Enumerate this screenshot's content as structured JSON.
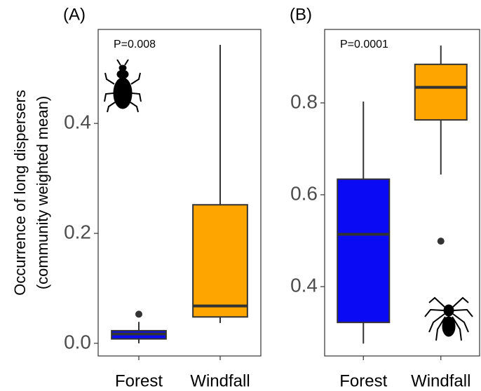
{
  "chart_data": [
    {
      "type": "box",
      "panel_label": "(A)",
      "annotation": "P=0.008",
      "ylabel": [
        "Occurrence of long dispersers",
        "(community weighted mean)"
      ],
      "categories": [
        "Forest",
        "Windfall"
      ],
      "colors": [
        "#0a0af5",
        "#ffa500"
      ],
      "boxes": [
        {
          "min": 0.0,
          "q1": 0.008,
          "median": 0.017,
          "q3": 0.023,
          "max": 0.039,
          "outliers": [
            0.053
          ]
        },
        {
          "min": 0.037,
          "q1": 0.048,
          "median": 0.068,
          "q3": 0.252,
          "max": 0.543,
          "outliers": []
        }
      ],
      "ylim": [
        -0.023,
        0.571
      ],
      "yticks": [
        {
          "value": 0,
          "label": "0.0"
        },
        0.2,
        0.4
      ]
    },
    {
      "type": "box",
      "panel_label": "(B)",
      "annotation": "P=0.0001",
      "categories": [
        "Forest",
        "Windfall"
      ],
      "colors": [
        "#0a0af5",
        "#ffa500"
      ],
      "boxes": [
        {
          "min": 0.276,
          "q1": 0.322,
          "median": 0.514,
          "q3": 0.634,
          "max": 0.803,
          "outliers": []
        },
        {
          "min": 0.644,
          "q1": 0.763,
          "median": 0.834,
          "q3": 0.884,
          "max": 0.925,
          "outliers": [
            0.499
          ]
        }
      ],
      "ylim": [
        0.249,
        0.96
      ],
      "yticks": [
        0.4,
        0.6,
        0.8
      ]
    }
  ]
}
